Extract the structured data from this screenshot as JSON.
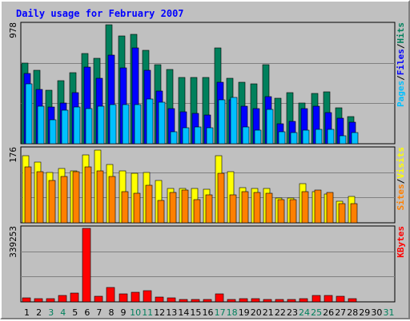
{
  "colors": {
    "hits": "#00805c",
    "files": "#0000ff",
    "pages": "#00c0ff",
    "visits": "#ffff00",
    "sites": "#ff8000",
    "kbytes": "#ff0000",
    "weekend": "#00805c",
    "slash": "#000000"
  },
  "chart_data": [
    {
      "type": "bar",
      "title": "Daily usage for February 2007",
      "ytick": "978",
      "ylim": [
        0,
        978
      ],
      "legend": [
        "Pages",
        "/",
        "Files",
        "/",
        "Hits"
      ],
      "categories": [
        "1",
        "2",
        "3",
        "4",
        "5",
        "6",
        "7",
        "8",
        "9",
        "10",
        "11",
        "12",
        "13",
        "14",
        "15",
        "16",
        "17",
        "18",
        "19",
        "20",
        "21",
        "22",
        "23",
        "24",
        "25",
        "26",
        "27",
        "28",
        "29",
        "30",
        "31"
      ],
      "weekend_days": [
        3,
        4,
        10,
        11,
        17,
        18,
        24,
        25,
        31
      ],
      "series": [
        {
          "name": "Hits",
          "values": [
            661,
            604,
            442,
            518,
            584,
            741,
            703,
            978,
            885,
            900,
            770,
            648,
            610,
            548,
            545,
            545,
            790,
            540,
            505,
            492,
            652,
            377,
            417,
            336,
            415,
            425,
            298,
            225,
            0,
            0,
            0
          ]
        },
        {
          "name": "Files",
          "values": [
            577,
            447,
            301,
            336,
            420,
            633,
            538,
            728,
            622,
            785,
            607,
            433,
            289,
            264,
            250,
            237,
            507,
            358,
            307,
            291,
            387,
            166,
            181,
            286,
            309,
            259,
            207,
            178,
            0,
            0,
            0
          ]
        },
        {
          "name": "Pages",
          "values": [
            492,
            309,
            200,
            273,
            304,
            286,
            309,
            323,
            323,
            323,
            367,
            339,
            100,
            134,
            136,
            128,
            360,
            383,
            136,
            114,
            282,
            100,
            91,
            109,
            118,
            118,
            68,
            94,
            0,
            0,
            0
          ]
        }
      ]
    },
    {
      "type": "bar",
      "ytick": "176",
      "ylim": [
        0,
        176
      ],
      "legend": [
        "Sites",
        "/",
        "Visits"
      ],
      "categories": [
        "1",
        "2",
        "3",
        "4",
        "5",
        "6",
        "7",
        "8",
        "9",
        "10",
        "11",
        "12",
        "13",
        "14",
        "15",
        "16",
        "17",
        "18",
        "19",
        "20",
        "21",
        "22",
        "23",
        "24",
        "25",
        "26",
        "27",
        "28",
        "29",
        "30",
        "31"
      ],
      "series": [
        {
          "name": "Visits",
          "values": [
            161,
            145,
            120,
            130,
            124,
            162,
            174,
            140,
            124,
            118,
            120,
            101,
            82,
            82,
            82,
            80,
            161,
            122,
            84,
            82,
            82,
            59,
            59,
            93,
            75,
            69,
            52,
            63,
            0,
            0,
            0
          ]
        },
        {
          "name": "Sites",
          "values": [
            133,
            122,
            101,
            111,
            122,
            133,
            124,
            111,
            75,
            70,
            89,
            54,
            72,
            79,
            56,
            66,
            118,
            66,
            75,
            73,
            70,
            55,
            56,
            75,
            79,
            72,
            46,
            45,
            0,
            0,
            0
          ]
        }
      ]
    },
    {
      "type": "bar",
      "ytick": "339253",
      "ylim": [
        0,
        339253
      ],
      "legend": [
        "KBytes"
      ],
      "categories": [
        "1",
        "2",
        "3",
        "4",
        "5",
        "6",
        "7",
        "8",
        "9",
        "10",
        "11",
        "12",
        "13",
        "14",
        "15",
        "16",
        "17",
        "18",
        "19",
        "20",
        "21",
        "22",
        "23",
        "24",
        "25",
        "26",
        "27",
        "28",
        "29",
        "30",
        "31"
      ],
      "series": [
        {
          "name": "KBytes",
          "values": [
            20000,
            16000,
            13000,
            28000,
            42000,
            339253,
            26000,
            68000,
            38000,
            46000,
            51000,
            21000,
            20000,
            10000,
            10000,
            10000,
            37000,
            12000,
            14000,
            14000,
            12000,
            11000,
            11000,
            14000,
            28000,
            28000,
            25000,
            13000,
            0,
            0,
            0
          ]
        }
      ]
    }
  ]
}
